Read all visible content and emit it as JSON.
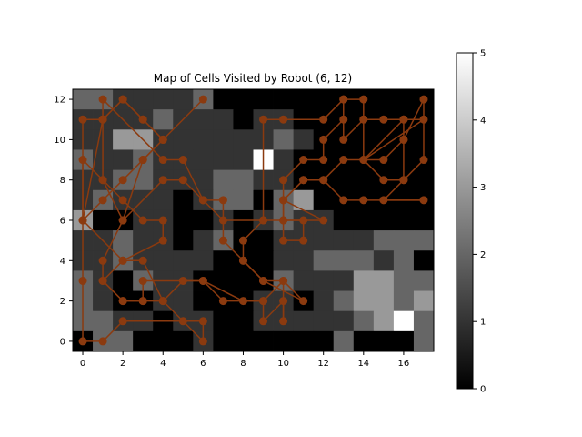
{
  "chart_data": {
    "type": "heatmap",
    "title": "Map of Cells Visited by Robot (6, 12)",
    "xlabel": "",
    "ylabel": "",
    "x_range": [
      -0.5,
      17.5
    ],
    "y_range": [
      -0.5,
      12.5
    ],
    "x_ticks": [
      0,
      2,
      4,
      6,
      8,
      10,
      12,
      14,
      16
    ],
    "y_ticks": [
      0,
      2,
      4,
      6,
      8,
      10,
      12
    ],
    "colormap": "gray",
    "colorbar": {
      "min": 0,
      "max": 5,
      "ticks": [
        0,
        1,
        2,
        3,
        4,
        5
      ]
    },
    "grid": false,
    "path_color": "#8b3a0f",
    "grid_values": [
      [
        2,
        2,
        1,
        1,
        1,
        1,
        2,
        0,
        0,
        0,
        0,
        0,
        0,
        0,
        0,
        0,
        0,
        0
      ],
      [
        1,
        1,
        1,
        1,
        2,
        1,
        1,
        1,
        0,
        1,
        1,
        0,
        0,
        0,
        0,
        0,
        0,
        0
      ],
      [
        1,
        1,
        3,
        3,
        1,
        1,
        1,
        1,
        1,
        1,
        2,
        1,
        0,
        0,
        0,
        0,
        0,
        0
      ],
      [
        2,
        1,
        1,
        2,
        1,
        1,
        1,
        1,
        1,
        5,
        1,
        0,
        0,
        0,
        0,
        0,
        0,
        0
      ],
      [
        1,
        1,
        2,
        2,
        1,
        1,
        1,
        2,
        2,
        1,
        1,
        0,
        0,
        0,
        0,
        0,
        0,
        0
      ],
      [
        1,
        2,
        1,
        1,
        1,
        0,
        1,
        2,
        2,
        0,
        2,
        3,
        0,
        0,
        0,
        0,
        0,
        0
      ],
      [
        3,
        0,
        0,
        1,
        1,
        0,
        0,
        1,
        0,
        1,
        2,
        1,
        1,
        0,
        0,
        0,
        0,
        0
      ],
      [
        1,
        1,
        2,
        1,
        1,
        0,
        1,
        2,
        0,
        0,
        1,
        1,
        1,
        1,
        1,
        2,
        2,
        2
      ],
      [
        1,
        1,
        2,
        1,
        1,
        1,
        1,
        0,
        0,
        0,
        1,
        1,
        2,
        2,
        2,
        1,
        2,
        0
      ],
      [
        2,
        1,
        0,
        2,
        1,
        1,
        0,
        0,
        0,
        0,
        2,
        1,
        1,
        1,
        3,
        3,
        2,
        2
      ],
      [
        2,
        1,
        0,
        0,
        1,
        1,
        0,
        0,
        0,
        1,
        1,
        0,
        1,
        2,
        3,
        3,
        2,
        3
      ],
      [
        2,
        2,
        1,
        1,
        0,
        1,
        1,
        0,
        0,
        1,
        1,
        1,
        1,
        1,
        2,
        3,
        5,
        2
      ],
      [
        0,
        2,
        2,
        0,
        0,
        0,
        1,
        0,
        0,
        0,
        0,
        0,
        0,
        2,
        0,
        0,
        0,
        2
      ]
    ],
    "path": [
      [
        6,
        12
      ],
      [
        4,
        10
      ],
      [
        3,
        11
      ],
      [
        2,
        12
      ],
      [
        1,
        11
      ],
      [
        1,
        8
      ],
      [
        2,
        7
      ],
      [
        3,
        6
      ],
      [
        4,
        6
      ],
      [
        4,
        5
      ],
      [
        2,
        4
      ],
      [
        1,
        3
      ],
      [
        2,
        2
      ],
      [
        3,
        2
      ],
      [
        3,
        3
      ],
      [
        6,
        3
      ],
      [
        7,
        2
      ],
      [
        9,
        2
      ],
      [
        9,
        1
      ],
      [
        10,
        2
      ],
      [
        10,
        1
      ],
      [
        10,
        3
      ],
      [
        9,
        3
      ],
      [
        8,
        4
      ],
      [
        7,
        5
      ],
      [
        7,
        7
      ],
      [
        6,
        7
      ],
      [
        5,
        8
      ],
      [
        4,
        8
      ],
      [
        2,
        6
      ],
      [
        1,
        8
      ],
      [
        0,
        9
      ],
      [
        0,
        6
      ],
      [
        0,
        3
      ],
      [
        0,
        0
      ],
      [
        1,
        0
      ],
      [
        2,
        1
      ],
      [
        6,
        1
      ],
      [
        6,
        0
      ],
      [
        5,
        1
      ],
      [
        4,
        2
      ],
      [
        3,
        4
      ],
      [
        2,
        4
      ],
      [
        0,
        6
      ],
      [
        1,
        11
      ],
      [
        1,
        12
      ],
      [
        4,
        9
      ],
      [
        5,
        9
      ],
      [
        6,
        7
      ],
      [
        7,
        6
      ],
      [
        9,
        6
      ],
      [
        10,
        6
      ],
      [
        12,
        6
      ],
      [
        10,
        7
      ],
      [
        11,
        8
      ],
      [
        12,
        8
      ],
      [
        13,
        9
      ],
      [
        15,
        9
      ],
      [
        16,
        10
      ],
      [
        17,
        12
      ],
      [
        17,
        9
      ],
      [
        16,
        8
      ],
      [
        16,
        10
      ],
      [
        16,
        11
      ],
      [
        14,
        9
      ],
      [
        14,
        11
      ],
      [
        13,
        10
      ],
      [
        13,
        12
      ],
      [
        14,
        12
      ],
      [
        14,
        11
      ],
      [
        15,
        11
      ],
      [
        16,
        11
      ],
      [
        17,
        11
      ],
      [
        14,
        9
      ],
      [
        15,
        8
      ],
      [
        16,
        8
      ],
      [
        15,
        7
      ],
      [
        17,
        7
      ],
      [
        14,
        7
      ],
      [
        13,
        7
      ],
      [
        12,
        8
      ],
      [
        11,
        8
      ],
      [
        10,
        7
      ],
      [
        10,
        5
      ],
      [
        11,
        5
      ],
      [
        11,
        6
      ],
      [
        10,
        6
      ],
      [
        10,
        8
      ],
      [
        11,
        9
      ],
      [
        12,
        9
      ],
      [
        12,
        10
      ],
      [
        13,
        11
      ],
      [
        13,
        12
      ],
      [
        12,
        11
      ],
      [
        10,
        11
      ],
      [
        9,
        11
      ],
      [
        9,
        6
      ],
      [
        8,
        5
      ],
      [
        8,
        4
      ],
      [
        9,
        3
      ],
      [
        11,
        2
      ],
      [
        10,
        3
      ],
      [
        9,
        2
      ],
      [
        8,
        2
      ],
      [
        6,
        3
      ],
      [
        5,
        3
      ],
      [
        4,
        2
      ],
      [
        3,
        2
      ],
      [
        2,
        2
      ],
      [
        1,
        3
      ],
      [
        1,
        4
      ],
      [
        2,
        6
      ],
      [
        3,
        9
      ],
      [
        4,
        10
      ],
      [
        3,
        11
      ],
      [
        2,
        12
      ],
      [
        1,
        11
      ],
      [
        0,
        11
      ],
      [
        0,
        6
      ],
      [
        1,
        7
      ],
      [
        2,
        8
      ],
      [
        3,
        9
      ],
      [
        4,
        10
      ]
    ]
  }
}
